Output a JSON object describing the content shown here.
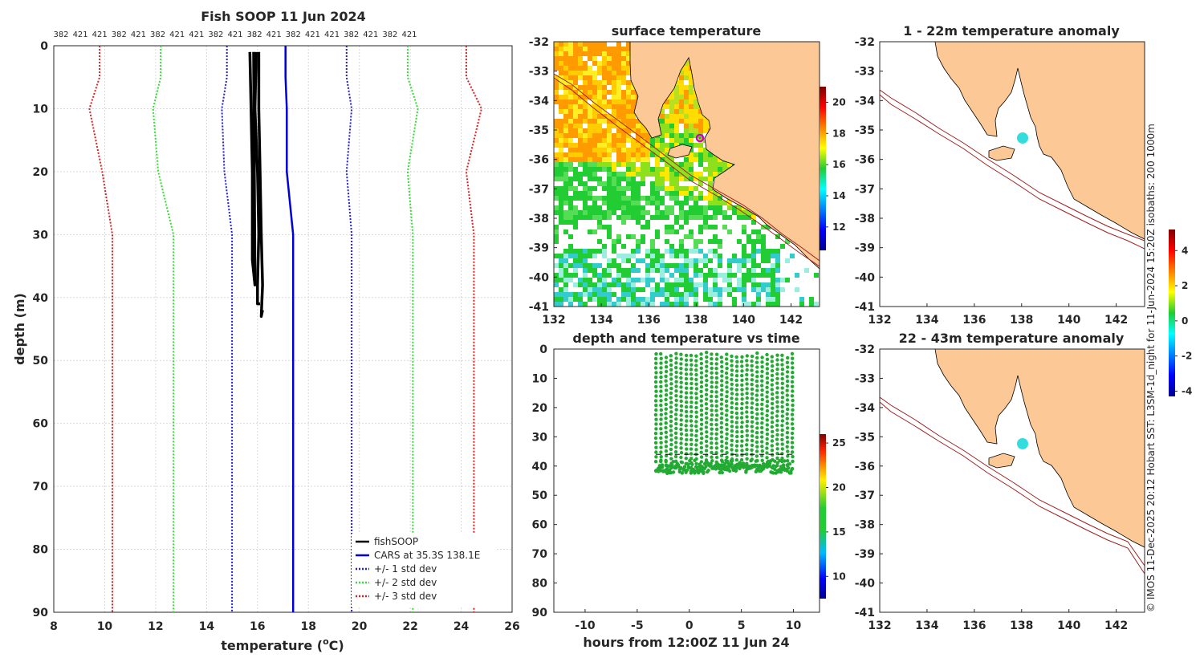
{
  "colors": {
    "profile": "#000000",
    "cars": "#0000dd",
    "std1": "#1f1fdd",
    "std2": "#33dd33",
    "std3": "#dd1f1f",
    "land": "#fcc896",
    "grid": "#d9d9d9",
    "coast": "#000000",
    "isobath": "#a02020",
    "sst_points": "#22aa33",
    "anomaly_points": "#33dddd"
  },
  "chart_data": [
    {
      "id": "profile",
      "type": "line",
      "title": "Fish SOOP 11 Jun 2024",
      "xlabel": "temperature (°C)",
      "xlabel_main": "temperature (",
      "xlabel_sup": "o",
      "xlabel_end": "C)",
      "ylabel": "depth (m)",
      "xlim": [
        8,
        26
      ],
      "ylim": [
        0,
        90
      ],
      "xticks": [
        8,
        10,
        12,
        14,
        16,
        18,
        20,
        22,
        24,
        26
      ],
      "yticks": [
        0,
        10,
        20,
        30,
        40,
        50,
        60,
        70,
        80,
        90
      ],
      "top_ticks": [
        "382",
        "421",
        "421",
        "382",
        "421",
        "382",
        "421",
        "421",
        "382",
        "421",
        "382",
        "421",
        "382",
        "421",
        "421",
        "382",
        "421",
        "382",
        "421"
      ],
      "legend": [
        "fishSOOP",
        "CARS at 35.3S 138.1E",
        "+/- 1 std dev",
        "+/- 2 std dev",
        "+/- 3 std dev"
      ],
      "series": [
        {
          "name": "CARS at 35.3S 138.1E",
          "points": [
            [
              17.1,
              0
            ],
            [
              17.1,
              5
            ],
            [
              17.15,
              10
            ],
            [
              17.15,
              20
            ],
            [
              17.4,
              30
            ],
            [
              17.4,
              40
            ],
            [
              17.4,
              90
            ]
          ]
        },
        {
          "name": "+/- 1 std dev low",
          "points": [
            [
              14.8,
              0
            ],
            [
              14.8,
              5
            ],
            [
              14.6,
              10
            ],
            [
              14.7,
              20
            ],
            [
              15.0,
              30
            ],
            [
              15.0,
              90
            ]
          ]
        },
        {
          "name": "+/- 1 std dev high",
          "points": [
            [
              19.5,
              0
            ],
            [
              19.5,
              5
            ],
            [
              19.7,
              10
            ],
            [
              19.5,
              20
            ],
            [
              19.7,
              30
            ],
            [
              19.7,
              90
            ]
          ]
        },
        {
          "name": "+/- 2 std dev low",
          "points": [
            [
              12.2,
              0
            ],
            [
              12.2,
              5
            ],
            [
              11.9,
              10
            ],
            [
              12.1,
              20
            ],
            [
              12.7,
              30
            ],
            [
              12.7,
              90
            ]
          ]
        },
        {
          "name": "+/- 2 std dev high",
          "points": [
            [
              21.9,
              0
            ],
            [
              21.9,
              5
            ],
            [
              22.3,
              10
            ],
            [
              21.9,
              20
            ],
            [
              22.1,
              30
            ],
            [
              22.1,
              90
            ]
          ]
        },
        {
          "name": "+/- 3 std dev low",
          "points": [
            [
              9.8,
              0
            ],
            [
              9.8,
              5
            ],
            [
              9.4,
              10
            ],
            [
              9.9,
              20
            ],
            [
              10.3,
              30
            ],
            [
              10.3,
              90
            ]
          ]
        },
        {
          "name": "+/- 3 std dev high",
          "points": [
            [
              24.2,
              0
            ],
            [
              24.2,
              5
            ],
            [
              24.8,
              10
            ],
            [
              24.2,
              20
            ],
            [
              24.5,
              30
            ],
            [
              24.5,
              90
            ]
          ]
        },
        {
          "name": "fishSOOP a",
          "points": [
            [
              15.7,
              1
            ],
            [
              15.75,
              10
            ],
            [
              15.8,
              20
            ],
            [
              15.8,
              30
            ],
            [
              15.8,
              34
            ],
            [
              15.9,
              38
            ],
            [
              15.85,
              1
            ]
          ]
        },
        {
          "name": "fishSOOP b",
          "points": [
            [
              15.95,
              1
            ],
            [
              15.9,
              10
            ],
            [
              16.0,
              20
            ],
            [
              16.05,
              30
            ],
            [
              16.0,
              38
            ],
            [
              16.0,
              41
            ],
            [
              16.1,
              41
            ]
          ]
        },
        {
          "name": "fishSOOP c",
          "points": [
            [
              16.05,
              1
            ],
            [
              16.05,
              10
            ],
            [
              16.1,
              20
            ],
            [
              16.15,
              30
            ],
            [
              16.2,
              38
            ],
            [
              16.15,
              43
            ],
            [
              16.2,
              42
            ]
          ]
        }
      ]
    },
    {
      "id": "sst",
      "type": "heatmap",
      "title": "surface temperature",
      "xlim": [
        132,
        143.2
      ],
      "ylim": [
        -41,
        -32
      ],
      "xticks": [
        132,
        134,
        136,
        138,
        140,
        142
      ],
      "yticks": [
        -32,
        -33,
        -34,
        -35,
        -36,
        -37,
        -38,
        -39,
        -40,
        -41
      ],
      "colorbar": {
        "min": 10.5,
        "max": 21,
        "ticks": [
          12,
          14,
          16,
          18,
          20
        ]
      }
    },
    {
      "id": "depth_time",
      "type": "scatter",
      "title": "depth and temperature vs time",
      "xlabel": "hours from 12:00Z 11 Jun 24",
      "xlim": [
        -13,
        12.5
      ],
      "ylim": [
        0,
        90
      ],
      "xticks": [
        -10,
        -5,
        0,
        5,
        10
      ],
      "yticks": [
        0,
        10,
        20,
        30,
        40,
        50,
        60,
        70,
        80,
        90
      ],
      "colorbar": {
        "min": 7.5,
        "max": 26,
        "ticks": [
          10,
          15,
          20,
          25
        ]
      },
      "x_range": [
        -3.2,
        9.9
      ],
      "casts": 28,
      "bottom_depth": [
        38,
        43
      ]
    },
    {
      "id": "anom_upper",
      "type": "scatter",
      "title": "1 - 22m temperature anomaly",
      "xlim": [
        132,
        143.2
      ],
      "ylim": [
        -41,
        -32
      ],
      "xticks": [
        132,
        134,
        136,
        138,
        140,
        142
      ],
      "yticks": [
        -32,
        -33,
        -34,
        -35,
        -36,
        -37,
        -38,
        -39,
        -40,
        -41
      ],
      "colorbar": {
        "min": -4.3,
        "max": 5.2,
        "ticks": [
          -4,
          -2,
          0,
          2,
          4
        ]
      }
    },
    {
      "id": "anom_lower",
      "type": "scatter",
      "title": "22 - 43m temperature anomaly",
      "xlim": [
        132,
        143.2
      ],
      "ylim": [
        -41,
        -32
      ],
      "xticks": [
        132,
        134,
        136,
        138,
        140,
        142
      ],
      "yticks": [
        -32,
        -33,
        -34,
        -35,
        -36,
        -37,
        -38,
        -39,
        -40,
        -41
      ]
    }
  ],
  "footer": "© IMOS 11-Dec-2025 20:12 Hobart SST: L3SM-1d_night for 11-Jun-2024 15:20Z isobaths: 200  1000m"
}
